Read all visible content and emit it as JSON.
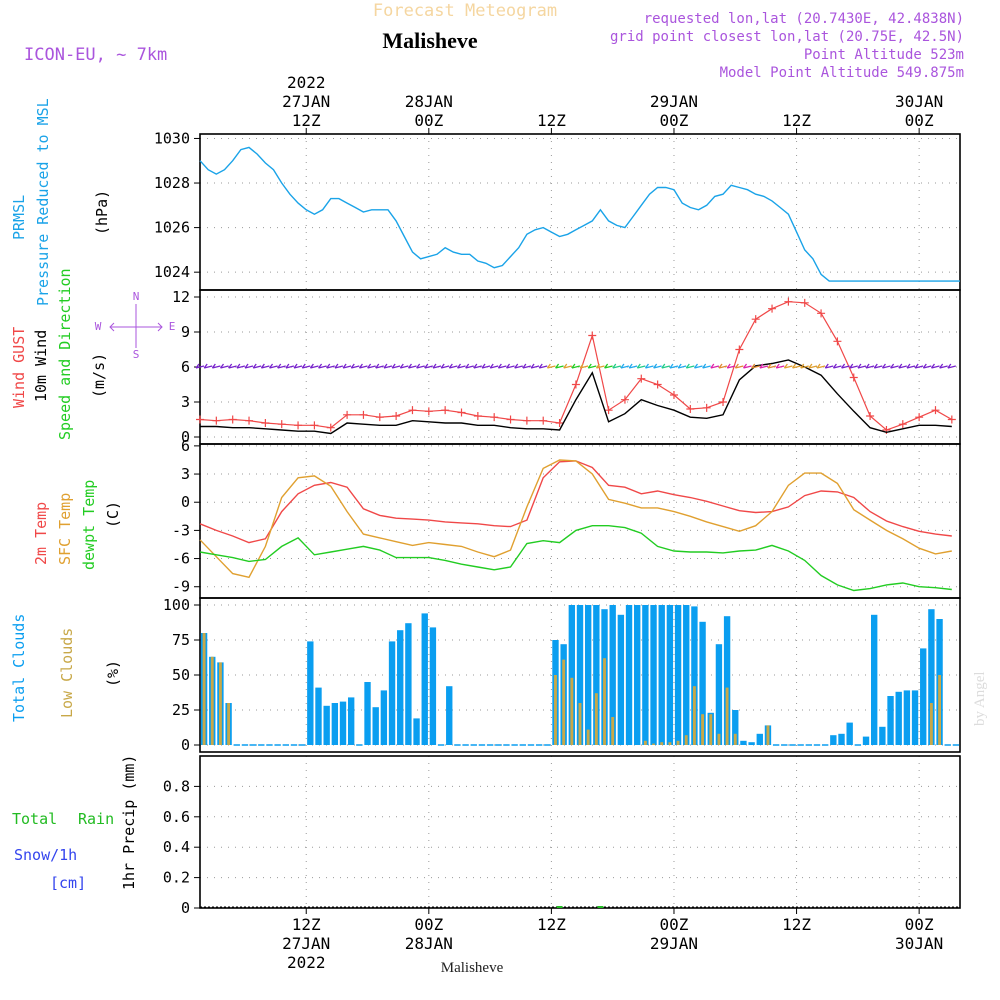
{
  "header": {
    "top_title": "Forecast Meteogram",
    "station": "Malisheve",
    "model": "ICON-EU, ~ 7km",
    "requested": "requested lon,lat (20.7430E, 42.4838N)",
    "grid_point": "grid point closest lon,lat (20.75E, 42.5N)",
    "point_alt": "Point Altitude 523m",
    "model_alt": "Model Point Altitude 549.875m"
  },
  "time_axis": {
    "start_hour": 0,
    "end_hour": 93,
    "ticks": [
      {
        "hour": 13,
        "top": [
          "2022",
          "27JAN",
          "12Z"
        ],
        "bottom": [
          "12Z",
          "27JAN",
          "2022"
        ]
      },
      {
        "hour": 28,
        "top": [
          "28JAN",
          "00Z"
        ],
        "bottom": [
          "00Z",
          "28JAN"
        ]
      },
      {
        "hour": 43,
        "top": [
          "12Z"
        ],
        "bottom": [
          "12Z"
        ]
      },
      {
        "hour": 58,
        "top": [
          "29JAN",
          "00Z"
        ],
        "bottom": [
          "00Z",
          "29JAN"
        ]
      },
      {
        "hour": 73,
        "top": [
          "12Z"
        ],
        "bottom": [
          "12Z"
        ]
      },
      {
        "hour": 88,
        "top": [
          "30JAN",
          "00Z"
        ],
        "bottom": [
          "00Z",
          "30JAN"
        ]
      }
    ],
    "footer_label": "Malisheve"
  },
  "panel_labels": {
    "pressure": {
      "line1": "PRMSL",
      "line2": "Pressure Reduced to MSL",
      "unit": "(hPa)"
    },
    "wind": {
      "gust": "Wind GUST",
      "mean": "10m Wind",
      "dir": "Speed and Direction",
      "unit": "(m/s)",
      "compass_n": "N",
      "compass_s": "S",
      "compass_w": "W",
      "compass_e": "E"
    },
    "temp": {
      "t2m": "2m Temp",
      "sfc": "SFC Temp",
      "dew": "dewpt Temp",
      "unit": "(C)"
    },
    "clouds": {
      "total": "Total Clouds",
      "low": "Low Clouds",
      "unit": "(%)"
    },
    "precip": {
      "rain_a": "Total",
      "rain_b": "Rain",
      "snow": "Snow/1h",
      "snow_unit": "[cm]",
      "unit": "1hr Precip (mm)"
    }
  },
  "watermark": "by Angel",
  "colors": {
    "pressure": "#1aa3e8",
    "gust": "#f04848",
    "wind": "#000000",
    "t2m": "#f04848",
    "sfc": "#e0a030",
    "dew": "#22cc22",
    "total_cloud": "#0a9ef0",
    "low_cloud": "#c8a848",
    "rain": "#22bb22",
    "snow": "#3344ee",
    "purple": "#aa55dd"
  },
  "chart_data": [
    {
      "type": "line",
      "name": "pressure",
      "ylim": [
        1023.2,
        1030.2
      ],
      "yticks": [
        1024,
        1026,
        1028,
        1030
      ],
      "x": [
        0,
        1,
        2,
        3,
        4,
        5,
        6,
        7,
        8,
        9,
        10,
        11,
        12,
        13,
        14,
        15,
        16,
        17,
        18,
        19,
        20,
        21,
        22,
        23,
        24,
        25,
        26,
        27,
        28,
        29,
        30,
        31,
        32,
        33,
        34,
        35,
        36,
        37,
        38,
        39,
        40,
        41,
        42,
        43,
        44,
        45,
        46,
        47,
        48,
        49,
        50,
        51,
        52,
        53,
        54,
        55,
        56,
        57,
        58,
        59,
        60,
        61,
        62,
        63,
        64,
        65,
        66,
        67,
        68,
        69,
        70,
        71,
        72,
        73,
        74,
        75,
        76,
        77,
        78,
        79,
        80,
        81,
        82,
        83,
        84,
        85,
        86,
        87,
        88,
        89,
        90,
        91,
        92,
        93
      ],
      "series": [
        {
          "values": [
            1029.0,
            1028.6,
            1028.4,
            1028.6,
            1029.0,
            1029.5,
            1029.6,
            1029.3,
            1028.9,
            1028.6,
            1028.0,
            1027.5,
            1027.1,
            1026.8,
            1026.6,
            1026.8,
            1027.3,
            1027.3,
            1027.1,
            1026.9,
            1026.7,
            1026.8,
            1026.8,
            1026.8,
            1026.3,
            1025.6,
            1024.9,
            1024.6,
            1024.7,
            1024.8,
            1025.1,
            1024.9,
            1024.8,
            1024.8,
            1024.5,
            1024.4,
            1024.2,
            1024.3,
            1024.7,
            1025.1,
            1025.7,
            1025.9,
            1026.0,
            1025.8,
            1025.6,
            1025.7,
            1025.9,
            1026.1,
            1026.3,
            1026.8,
            1026.3,
            1026.1,
            1026.0,
            1026.5,
            1027.0,
            1027.5,
            1027.8,
            1027.8,
            1027.7,
            1027.1,
            1026.9,
            1026.8,
            1027.0,
            1027.4,
            1027.5,
            1027.9,
            1027.8,
            1027.7,
            1027.5,
            1027.4,
            1027.2,
            1026.9,
            1026.6,
            1025.8,
            1025.0,
            1024.6,
            1023.9,
            1023.6,
            1023.6,
            1023.6,
            1023.6,
            1023.6,
            1023.6,
            1023.6,
            1023.6,
            1023.6,
            1023.6,
            1023.6,
            1023.6,
            1023.6,
            1023.6,
            1023.6,
            1023.6,
            1023.6
          ]
        }
      ]
    },
    {
      "type": "line",
      "name": "wind",
      "ylim": [
        -0.6,
        12.6
      ],
      "yticks": [
        0,
        3,
        6,
        9,
        12
      ],
      "x": [
        0,
        2,
        4,
        6,
        8,
        10,
        12,
        14,
        16,
        18,
        20,
        22,
        24,
        26,
        28,
        30,
        32,
        34,
        36,
        38,
        40,
        42,
        44,
        46,
        48,
        50,
        52,
        54,
        56,
        58,
        60,
        62,
        64,
        66,
        68,
        70,
        72,
        74,
        76,
        78,
        80,
        82,
        84,
        86,
        88,
        90,
        92
      ],
      "series": [
        {
          "name": "Wind GUST",
          "values": [
            1.5,
            1.4,
            1.5,
            1.4,
            1.2,
            1.1,
            1.0,
            1.0,
            0.8,
            1.9,
            1.9,
            1.7,
            1.8,
            2.3,
            2.2,
            2.3,
            2.1,
            1.8,
            1.7,
            1.5,
            1.4,
            1.4,
            1.2,
            4.5,
            8.7,
            2.3,
            3.2,
            5.0,
            4.5,
            3.6,
            2.4,
            2.5,
            3.0,
            7.5,
            10.1,
            11.0,
            11.6,
            11.5,
            10.6,
            8.2,
            5.1,
            1.8,
            0.6,
            1.1,
            1.7,
            2.3,
            1.5
          ]
        },
        {
          "name": "10m Wind",
          "values": [
            0.9,
            0.9,
            0.8,
            0.8,
            0.7,
            0.6,
            0.5,
            0.5,
            0.3,
            1.2,
            1.1,
            1.0,
            1.0,
            1.4,
            1.3,
            1.2,
            1.2,
            1.0,
            1.0,
            0.8,
            0.7,
            0.7,
            0.6,
            3.2,
            5.5,
            1.3,
            2.0,
            3.2,
            2.7,
            2.3,
            1.7,
            1.6,
            1.9,
            4.9,
            6.1,
            6.3,
            6.6,
            6.0,
            5.3,
            3.7,
            2.2,
            0.8,
            0.4,
            0.7,
            1.0,
            1.0,
            0.9
          ]
        }
      ]
    },
    {
      "type": "line",
      "name": "temperature",
      "ylim": [
        -10.2,
        6.2
      ],
      "yticks": [
        -9,
        -6,
        -3,
        0,
        3,
        6
      ],
      "x": [
        0,
        2,
        4,
        6,
        8,
        10,
        12,
        14,
        16,
        18,
        20,
        22,
        24,
        26,
        28,
        30,
        32,
        34,
        36,
        38,
        40,
        42,
        44,
        46,
        48,
        50,
        52,
        54,
        56,
        58,
        60,
        62,
        64,
        66,
        68,
        70,
        72,
        74,
        76,
        78,
        80,
        82,
        84,
        86,
        88,
        90,
        92
      ],
      "series": [
        {
          "name": "2m Temp",
          "values": [
            -2.3,
            -3.0,
            -3.6,
            -4.3,
            -3.9,
            -1.0,
            0.9,
            1.8,
            2.1,
            1.6,
            -0.7,
            -1.4,
            -1.7,
            -1.8,
            -1.9,
            -2.1,
            -2.2,
            -2.3,
            -2.5,
            -2.6,
            -1.9,
            2.6,
            4.3,
            4.4,
            3.7,
            1.8,
            1.6,
            0.9,
            1.2,
            0.8,
            0.5,
            0.1,
            -0.4,
            -0.9,
            -1.1,
            -1.0,
            -0.5,
            0.7,
            1.2,
            1.1,
            0.5,
            -1.0,
            -2.0,
            -2.6,
            -3.1,
            -3.4,
            -3.6
          ]
        },
        {
          "name": "SFC Temp",
          "values": [
            -4.0,
            -5.8,
            -7.6,
            -8.0,
            -4.7,
            0.5,
            2.6,
            2.8,
            1.7,
            -1.0,
            -3.4,
            -3.8,
            -4.2,
            -4.6,
            -4.3,
            -4.5,
            -4.7,
            -5.3,
            -5.8,
            -5.1,
            -0.5,
            3.6,
            4.5,
            4.4,
            3.0,
            0.3,
            -0.1,
            -0.6,
            -0.6,
            -1.0,
            -1.5,
            -2.1,
            -2.6,
            -3.1,
            -2.5,
            -1.0,
            1.8,
            3.1,
            3.1,
            2.0,
            -0.8,
            -1.9,
            -3.0,
            -3.9,
            -4.9,
            -5.5,
            -5.2
          ]
        },
        {
          "name": "dewpt Temp",
          "values": [
            -5.3,
            -5.6,
            -5.9,
            -6.3,
            -6.1,
            -4.7,
            -3.8,
            -5.6,
            -5.3,
            -5.0,
            -4.7,
            -5.1,
            -5.9,
            -5.9,
            -5.9,
            -6.2,
            -6.6,
            -6.9,
            -7.2,
            -6.9,
            -4.4,
            -4.1,
            -4.3,
            -3.0,
            -2.5,
            -2.5,
            -2.7,
            -3.3,
            -4.7,
            -5.2,
            -5.3,
            -5.3,
            -5.4,
            -5.2,
            -5.1,
            -4.6,
            -5.2,
            -6.2,
            -7.8,
            -8.8,
            -9.4,
            -9.2,
            -8.8,
            -8.6,
            -9.0,
            -9.1,
            -9.3
          ]
        }
      ]
    },
    {
      "type": "bar",
      "name": "clouds",
      "ylim": [
        -5,
        105
      ],
      "yticks": [
        0,
        25,
        50,
        75,
        100
      ],
      "x": [
        0,
        1,
        2,
        3,
        4,
        5,
        6,
        7,
        8,
        9,
        10,
        11,
        12,
        13,
        14,
        15,
        16,
        17,
        18,
        19,
        20,
        21,
        22,
        23,
        24,
        25,
        26,
        27,
        28,
        29,
        30,
        31,
        32,
        33,
        34,
        35,
        36,
        37,
        38,
        39,
        40,
        41,
        42,
        43,
        44,
        45,
        46,
        47,
        48,
        49,
        50,
        51,
        52,
        53,
        54,
        55,
        56,
        57,
        58,
        59,
        60,
        61,
        62,
        63,
        64,
        65,
        66,
        67,
        68,
        69,
        70,
        71,
        72,
        73,
        74,
        75,
        76,
        77,
        78,
        79,
        80,
        81,
        82,
        83,
        84,
        85,
        86,
        87,
        88,
        89,
        90,
        91,
        92
      ],
      "series": [
        {
          "name": "Total Clouds",
          "values": [
            80,
            63,
            59,
            30,
            0,
            0,
            0,
            0,
            0,
            0,
            0,
            0,
            0,
            74,
            41,
            28,
            30,
            31,
            34,
            0,
            45,
            27,
            39,
            74,
            82,
            87,
            19,
            94,
            84,
            0,
            42,
            0,
            0,
            0,
            0,
            0,
            0,
            0,
            0,
            0,
            0,
            0,
            0,
            75,
            72,
            100,
            100,
            100,
            100,
            97,
            100,
            93,
            100,
            100,
            100,
            100,
            100,
            100,
            100,
            100,
            99,
            88,
            23,
            72,
            92,
            25,
            3,
            2,
            8,
            14,
            0,
            0,
            0,
            0,
            0,
            0,
            0,
            7,
            8,
            16,
            0,
            6,
            93,
            13,
            35,
            38,
            39,
            39,
            69,
            97,
            90,
            0,
            0
          ]
        },
        {
          "name": "Low Clouds",
          "values": [
            80,
            63,
            59,
            30,
            0,
            0,
            0,
            0,
            0,
            0,
            0,
            0,
            0,
            0,
            0,
            0,
            0,
            0,
            0,
            0,
            0,
            0,
            0,
            0,
            0,
            0,
            0,
            0,
            0,
            0,
            0,
            0,
            0,
            0,
            0,
            0,
            0,
            0,
            0,
            0,
            0,
            0,
            0,
            50,
            61,
            48,
            30,
            11,
            37,
            62,
            20,
            0,
            0,
            0,
            3,
            1,
            2,
            2,
            3,
            7,
            42,
            22,
            22,
            8,
            41,
            8,
            0,
            0,
            0,
            14,
            0,
            0,
            0,
            0,
            0,
            0,
            0,
            0,
            0,
            0,
            0,
            0,
            0,
            0,
            0,
            0,
            0,
            0,
            0,
            30,
            50,
            0,
            0
          ]
        }
      ]
    },
    {
      "type": "bar",
      "name": "precipitation",
      "ylim": [
        0,
        1.0
      ],
      "yticks": [
        0,
        0.2,
        0.4,
        0.6,
        0.8
      ],
      "series": [
        {
          "name": "Total Rain",
          "x": [
            44,
            49
          ],
          "values": [
            0.005,
            0.005
          ]
        },
        {
          "name": "Snow/1h",
          "x": [],
          "values": []
        }
      ]
    }
  ]
}
